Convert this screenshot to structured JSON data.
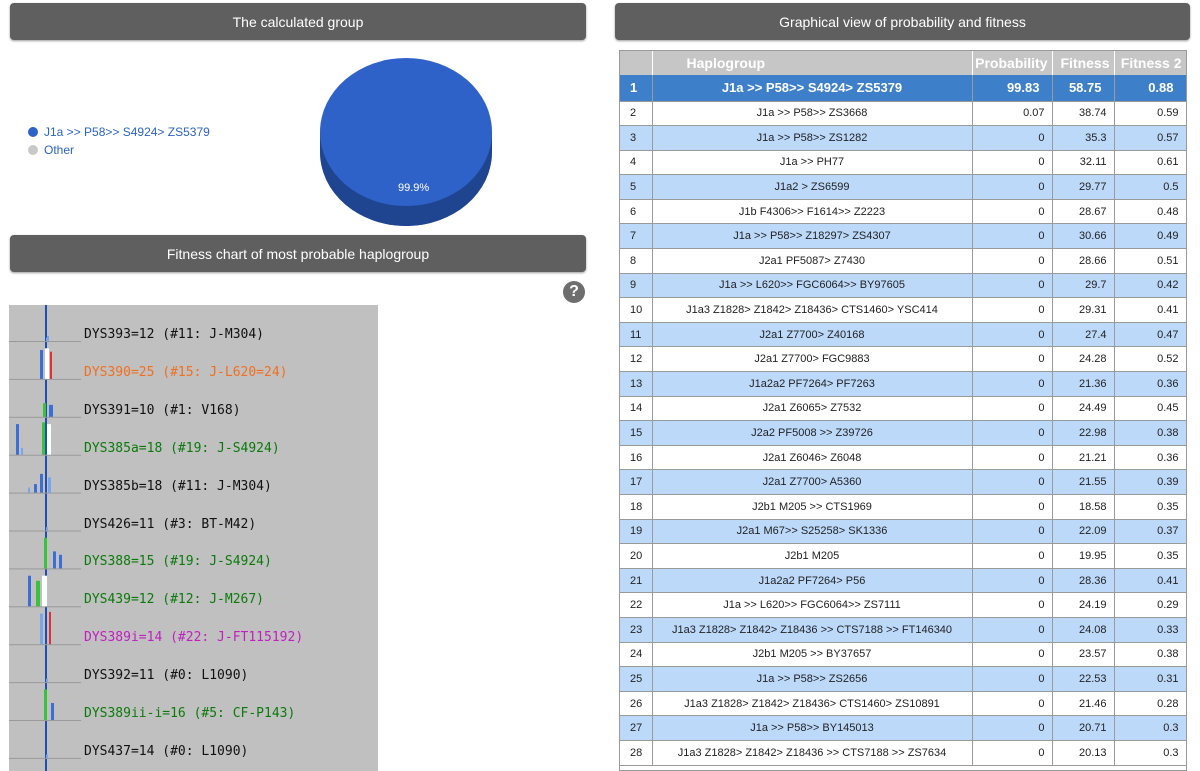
{
  "left_panel": {
    "title": "The calculated group",
    "legend": [
      {
        "label": "J1a >> P58>> S4924> ZS5379",
        "color": "#2f62c9"
      },
      {
        "label": "Other",
        "color": "#c9c9c9"
      }
    ],
    "pie": {
      "value_label": "99.9%",
      "main_fraction": 0.999,
      "main_color": "#2f62c9",
      "shadow_color": "#1f4591"
    }
  },
  "fitness_panel": {
    "title": "Fitness chart of most probable haplogroup",
    "help_icon": "question-circle-icon",
    "help_glyph": "?",
    "markers": [
      {
        "label": "DYS393=12 (#11: J-M304)",
        "color": "#111111"
      },
      {
        "label": "DYS390=25 (#15: J-L620=24)",
        "color": "#f07020"
      },
      {
        "label": "DYS391=10 (#1: V168)",
        "color": "#111111"
      },
      {
        "label": "DYS385a=18 (#19: J-S4924)",
        "color": "#0b7a0b"
      },
      {
        "label": "DYS385b=18 (#11: J-M304)",
        "color": "#111111"
      },
      {
        "label": "DYS426=11 (#3: BT-M42)",
        "color": "#111111"
      },
      {
        "label": "DYS388=15 (#19: J-S4924)",
        "color": "#0b7a0b"
      },
      {
        "label": "DYS439=12 (#12: J-M267)",
        "color": "#0b7a0b"
      },
      {
        "label": "DYS389i=14 (#22: J-FT115192)",
        "color": "#c020c0"
      },
      {
        "label": "DYS392=11 (#0: L1090)",
        "color": "#111111"
      },
      {
        "label": "DYS389ii-i=16 (#5: CF-P143)",
        "color": "#0b7a0b"
      },
      {
        "label": "DYS437=14 (#0: L1090)",
        "color": "#111111"
      }
    ]
  },
  "right_panel": {
    "title": "Graphical view of probability and fitness",
    "columns": [
      "Haplogroup",
      "Probability",
      "Fitness",
      "Fitness 2"
    ],
    "rows": [
      {
        "n": "1",
        "hg": "J1a >> P58>> S4924> ZS5379",
        "p": "99.83",
        "f": "58.75",
        "f2": "0.88"
      },
      {
        "n": "2",
        "hg": "J1a >> P58>> ZS3668",
        "p": "0.07",
        "f": "38.74",
        "f2": "0.59"
      },
      {
        "n": "3",
        "hg": "J1a >> P58>> ZS1282",
        "p": "0",
        "f": "35.3",
        "f2": "0.57"
      },
      {
        "n": "4",
        "hg": "J1a >> PH77",
        "p": "0",
        "f": "32.11",
        "f2": "0.61"
      },
      {
        "n": "5",
        "hg": "J1a2 > ZS6599",
        "p": "0",
        "f": "29.77",
        "f2": "0.5"
      },
      {
        "n": "6",
        "hg": "J1b F4306>> F1614>> Z2223",
        "p": "0",
        "f": "28.67",
        "f2": "0.48"
      },
      {
        "n": "7",
        "hg": "J1a >> P58>> Z18297> ZS4307",
        "p": "0",
        "f": "30.66",
        "f2": "0.49"
      },
      {
        "n": "8",
        "hg": "J2a1 PF5087> Z7430",
        "p": "0",
        "f": "28.66",
        "f2": "0.51"
      },
      {
        "n": "9",
        "hg": "J1a >> L620>> FGC6064>> BY97605",
        "p": "0",
        "f": "29.7",
        "f2": "0.42"
      },
      {
        "n": "10",
        "hg": "J1a3 Z1828> Z1842> Z18436> CTS1460> YSC414",
        "p": "0",
        "f": "29.31",
        "f2": "0.41"
      },
      {
        "n": "11",
        "hg": "J2a1 Z7700> Z40168",
        "p": "0",
        "f": "27.4",
        "f2": "0.47"
      },
      {
        "n": "12",
        "hg": "J2a1 Z7700> FGC9883",
        "p": "0",
        "f": "24.28",
        "f2": "0.52"
      },
      {
        "n": "13",
        "hg": "J1a2a2 PF7264> PF7263",
        "p": "0",
        "f": "21.36",
        "f2": "0.36"
      },
      {
        "n": "14",
        "hg": "J2a1 Z6065> Z7532",
        "p": "0",
        "f": "24.49",
        "f2": "0.45"
      },
      {
        "n": "15",
        "hg": "J2a2 PF5008 >> Z39726",
        "p": "0",
        "f": "22.98",
        "f2": "0.38"
      },
      {
        "n": "16",
        "hg": "J2a1 Z6046> Z6048",
        "p": "0",
        "f": "21.21",
        "f2": "0.36"
      },
      {
        "n": "17",
        "hg": "J2a1 Z7700> A5360",
        "p": "0",
        "f": "21.55",
        "f2": "0.39"
      },
      {
        "n": "18",
        "hg": "J2b1 M205 >> CTS1969",
        "p": "0",
        "f": "18.58",
        "f2": "0.35"
      },
      {
        "n": "19",
        "hg": "J2a1 M67>> S25258> SK1336",
        "p": "0",
        "f": "22.09",
        "f2": "0.37"
      },
      {
        "n": "20",
        "hg": "J2b1 M205",
        "p": "0",
        "f": "19.95",
        "f2": "0.35"
      },
      {
        "n": "21",
        "hg": "J1a2a2 PF7264> P56",
        "p": "0",
        "f": "28.36",
        "f2": "0.41"
      },
      {
        "n": "22",
        "hg": "J1a >> L620>> FGC6064>> ZS7111",
        "p": "0",
        "f": "24.19",
        "f2": "0.29"
      },
      {
        "n": "23",
        "hg": "J1a3 Z1828> Z1842> Z18436 >> CTS7188 >> FT146340",
        "p": "0",
        "f": "24.08",
        "f2": "0.33"
      },
      {
        "n": "24",
        "hg": "J2b1 M205 >> BY37657",
        "p": "0",
        "f": "23.57",
        "f2": "0.38"
      },
      {
        "n": "25",
        "hg": "J1a >> P58>> ZS2656",
        "p": "0",
        "f": "22.53",
        "f2": "0.31"
      },
      {
        "n": "26",
        "hg": "J1a3 Z1828> Z1842> Z18436> CTS1460> ZS10891",
        "p": "0",
        "f": "21.46",
        "f2": "0.28"
      },
      {
        "n": "27",
        "hg": "J1a >> P58>> BY145013",
        "p": "0",
        "f": "20.71",
        "f2": "0.3"
      },
      {
        "n": "28",
        "hg": "J1a3 Z1828> Z1842> Z18436 >> CTS7188 >> ZS7634",
        "p": "0",
        "f": "20.13",
        "f2": "0.3"
      }
    ]
  }
}
